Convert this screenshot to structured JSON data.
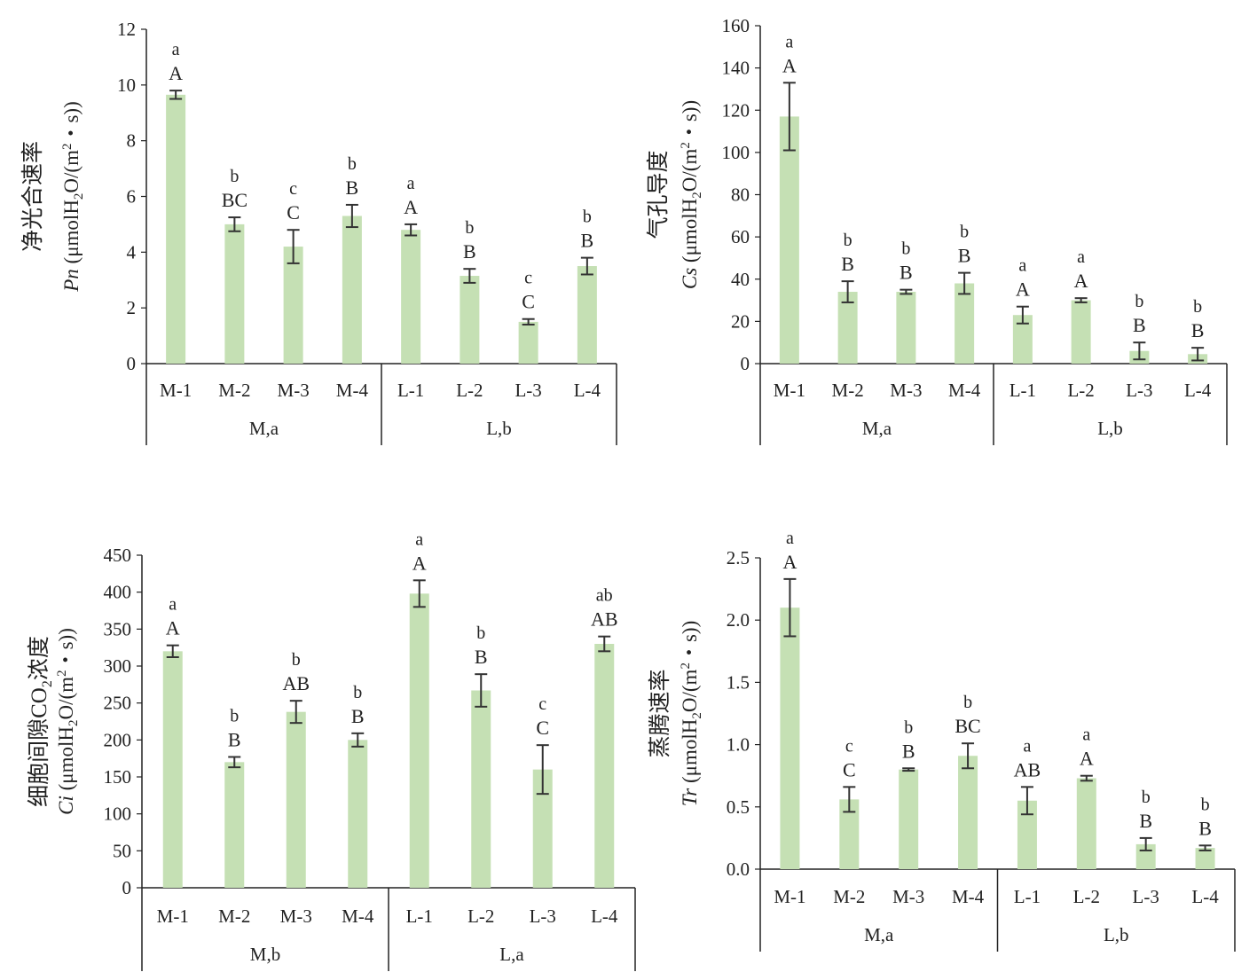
{
  "chart_data": [
    {
      "type": "bar",
      "ylabel_cn": "净光合速率",
      "ylabel_var": "Pn",
      "ylabel_unit_pre": "(μmolH",
      "ylabel_unit_sub": "2",
      "ylabel_unit_mid": "O/(m",
      "ylabel_unit_sup": "2",
      "ylabel_unit_post": "・s))",
      "ylim": [
        0,
        12
      ],
      "yticks": [
        "0",
        "2",
        "4",
        "6",
        "8",
        "10",
        "12"
      ],
      "categories": [
        "M-1",
        "M-2",
        "M-3",
        "M-4",
        "L-1",
        "L-2",
        "L-3",
        "L-4"
      ],
      "groups": [
        "M,a",
        "L,b"
      ],
      "values": [
        9.65,
        5.0,
        4.2,
        5.3,
        4.8,
        3.15,
        1.5,
        3.5
      ],
      "errors": [
        0.15,
        0.25,
        0.6,
        0.4,
        0.2,
        0.25,
        0.1,
        0.3
      ],
      "letters_lower": [
        "a",
        "b",
        "c",
        "b",
        "a",
        "b",
        "c",
        "b"
      ],
      "letters_upper": [
        "A",
        "BC",
        "C",
        "B",
        "A",
        "B",
        "C",
        "B"
      ]
    },
    {
      "type": "bar",
      "ylabel_cn": "气孔导度",
      "ylabel_var": "Cs",
      "ylabel_unit_pre": "(μmolH",
      "ylabel_unit_sub": "2",
      "ylabel_unit_mid": "O/(m",
      "ylabel_unit_sup": "2",
      "ylabel_unit_post": "・s))",
      "ylim": [
        0,
        160
      ],
      "yticks": [
        "0",
        "20",
        "40",
        "60",
        "80",
        "100",
        "120",
        "140",
        "160"
      ],
      "categories": [
        "M-1",
        "M-2",
        "M-3",
        "M-4",
        "L-1",
        "L-2",
        "L-3",
        "L-4"
      ],
      "groups": [
        "M,a",
        "L,b"
      ],
      "values": [
        117,
        34,
        34,
        38,
        23,
        30,
        6,
        4.5
      ],
      "errors": [
        16,
        5,
        1,
        5,
        4,
        1,
        4,
        3
      ],
      "letters_lower": [
        "a",
        "b",
        "b",
        "b",
        "a",
        "a",
        "b",
        "b"
      ],
      "letters_upper": [
        "A",
        "B",
        "B",
        "B",
        "A",
        "A",
        "B",
        "B"
      ]
    },
    {
      "type": "bar",
      "ylabel_cn": "细胞间隙CO",
      "ylabel_cn_sub": "2",
      "ylabel_cn_post": "浓度",
      "ylabel_var": "Ci",
      "ylabel_unit_pre": "(μmolH",
      "ylabel_unit_sub": "2",
      "ylabel_unit_mid": "O/(m",
      "ylabel_unit_sup": "2",
      "ylabel_unit_post": "・s))",
      "ylim": [
        0,
        450
      ],
      "yticks": [
        "0",
        "50",
        "100",
        "150",
        "200",
        "250",
        "300",
        "350",
        "400",
        "450"
      ],
      "categories": [
        "M-1",
        "M-2",
        "M-3",
        "M-4",
        "L-1",
        "L-2",
        "L-3",
        "L-4"
      ],
      "groups": [
        "M,b",
        "L,a"
      ],
      "values": [
        320,
        170,
        238,
        200,
        398,
        267,
        160,
        330
      ],
      "errors": [
        8,
        7,
        15,
        9,
        18,
        22,
        33,
        10
      ],
      "letters_lower": [
        "a",
        "b",
        "b",
        "b",
        "a",
        "b",
        "c",
        "ab"
      ],
      "letters_upper": [
        "A",
        "B",
        "AB",
        "B",
        "A",
        "B",
        "C",
        "AB"
      ]
    },
    {
      "type": "bar",
      "ylabel_cn": "蒸腾速率",
      "ylabel_var": "Tr",
      "ylabel_unit_pre": "(μmolH",
      "ylabel_unit_sub": "2",
      "ylabel_unit_mid": "O/(m",
      "ylabel_unit_sup": "2",
      "ylabel_unit_post": "・s))",
      "ylim": [
        0,
        2.5
      ],
      "yticks": [
        "0.0",
        "0.5",
        "1.0",
        "1.5",
        "2.0",
        "2.5"
      ],
      "categories": [
        "M-1",
        "M-2",
        "M-3",
        "M-4",
        "L-1",
        "L-2",
        "L-3",
        "L-4"
      ],
      "groups": [
        "M,a",
        "L,b"
      ],
      "values": [
        2.1,
        0.56,
        0.8,
        0.91,
        0.55,
        0.73,
        0.2,
        0.17
      ],
      "errors": [
        0.23,
        0.1,
        0.01,
        0.1,
        0.11,
        0.02,
        0.05,
        0.02
      ],
      "letters_lower": [
        "a",
        "c",
        "b",
        "b",
        "a",
        "a",
        "b",
        "b"
      ],
      "letters_upper": [
        "A",
        "C",
        "B",
        "BC",
        "AB",
        "A",
        "B",
        "B"
      ]
    }
  ],
  "colors": {
    "bar": "#c5e0b4",
    "axis": "#222222",
    "text": "#222222"
  }
}
